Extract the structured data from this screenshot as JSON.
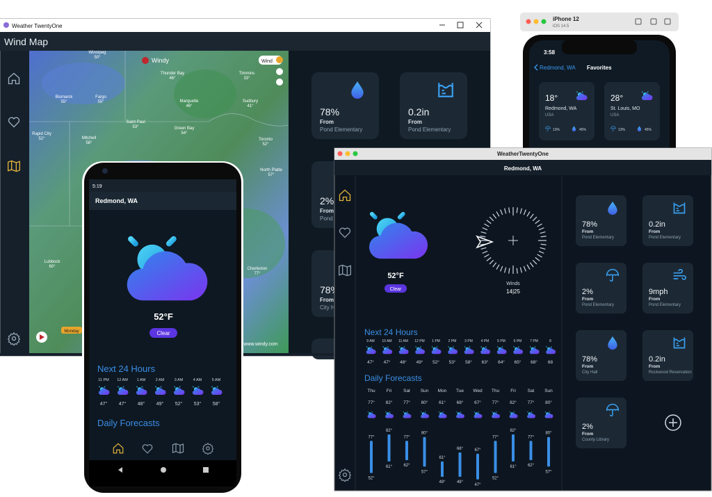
{
  "windows_app": {
    "title": "Weather TwentyOne",
    "header": "Wind Map",
    "map": {
      "brand": "Windy",
      "layer": "Wind",
      "labels": [
        {
          "name": "Winnipeg",
          "temp": "50°"
        },
        {
          "name": "Thunder Bay",
          "temp": "46°"
        },
        {
          "name": "Timmins",
          "temp": "33°"
        },
        {
          "name": "Bismarck",
          "temp": "55°"
        },
        {
          "name": "Fargo",
          "temp": "55°"
        },
        {
          "name": "Marquette",
          "temp": "46°"
        },
        {
          "name": "Sudbury",
          "temp": "41°"
        },
        {
          "name": "Saint Paul",
          "temp": "53°"
        },
        {
          "name": "Green Bay",
          "temp": "54°"
        },
        {
          "name": "Toronto",
          "temp": "52°"
        },
        {
          "name": "Rapid City",
          "temp": "52°"
        },
        {
          "name": "Mitchell",
          "temp": "58°"
        },
        {
          "name": "North Platte",
          "temp": "57°"
        },
        {
          "name": "Charleston",
          "temp": "77°"
        },
        {
          "name": "Lubbock",
          "temp": "60°"
        }
      ],
      "day": "Monday",
      "credit": "www.windy.com"
    },
    "tiles": [
      {
        "value": "78%",
        "from": "From",
        "place": "Pond Elementary"
      },
      {
        "value": "0.2in",
        "from": "From",
        "place": "Pond Elementary"
      },
      {
        "value": "2%",
        "from": "From",
        "place": "Pond Elementary"
      },
      {
        "value": "78%",
        "from": "From",
        "place": "City Hall"
      }
    ]
  },
  "iphone": {
    "device": "iPhone 12",
    "os": "iOS 14.5",
    "time": "3:58",
    "back": "Redmond, WA",
    "title": "Favorites",
    "cards": [
      {
        "temp": "18°",
        "city": "Redmond, WA",
        "country": "USA",
        "rain": "13%",
        "humidity": "45%"
      },
      {
        "temp": "28°",
        "city": "St. Louis, MO",
        "country": "USA",
        "rain": "13%",
        "humidity": "45%"
      }
    ]
  },
  "mac_app": {
    "title": "WeatherTwentyOne",
    "location": "Redmond, WA",
    "temperature": "52°F",
    "condition": "Clear",
    "winds_label": "Winds",
    "winds": "14|25",
    "next_hours_title": "Next 24 Hours",
    "hours": [
      "9 AM",
      "10 AM",
      "11 AM",
      "12 PM",
      "1 PM",
      "2 PM",
      "3 PM",
      "4 PM",
      "5 PM",
      "6 PM",
      "7 PM",
      "8"
    ],
    "hour_temps": [
      "47°",
      "47°",
      "48°",
      "49°",
      "52°",
      "53°",
      "58°",
      "63°",
      "64°",
      "65°",
      "68°",
      "68"
    ],
    "daily_title": "Daily Forecasts",
    "days": [
      "Thu",
      "Fri",
      "Sat",
      "Sun",
      "Mon",
      "Tue",
      "Wed",
      "Thu",
      "Fri",
      "Sat",
      "Sun"
    ],
    "highs": [
      77,
      82,
      77,
      80,
      61,
      68,
      67,
      77,
      82,
      77,
      80
    ],
    "high_labels": [
      "77°",
      "82°",
      "77°",
      "80°",
      "61°",
      "68°",
      "67°",
      "77°",
      "82°",
      "77°",
      "80°"
    ],
    "lows": [
      52,
      61,
      62,
      57,
      49,
      49,
      47,
      52,
      61,
      62,
      57
    ],
    "low_labels": [
      "52°",
      "61°",
      "62°",
      "57°",
      "49°",
      "49°",
      "47°",
      "52°",
      "61°",
      "62°",
      "57°"
    ],
    "tiles": [
      {
        "value": "78%",
        "from": "From",
        "place": "Pond Elementary"
      },
      {
        "value": "0.2in",
        "from": "From",
        "place": "Pond Elementary"
      },
      {
        "value": "2%",
        "from": "From",
        "place": "Pond Elementary"
      },
      {
        "value": "9mph",
        "from": "From",
        "place": "Pond Elementary"
      },
      {
        "value": "78%",
        "from": "From",
        "place": "City Hall"
      },
      {
        "value": "0.2in",
        "from": "From",
        "place": "Rockwood Reservation"
      },
      {
        "value": "2%",
        "from": "From",
        "place": "County Library"
      }
    ]
  },
  "android_app": {
    "time": "5:19",
    "location": "Redmond, WA",
    "temperature": "52°F",
    "condition": "Clear",
    "next_hours_title": "Next 24 Hours",
    "hours": [
      "11 PM",
      "12 AM",
      "1 AM",
      "2 AM",
      "3 AM",
      "4 AM",
      "5 AM"
    ],
    "hour_temps": [
      "47°",
      "47°",
      "48°",
      "49°",
      "52°",
      "53°",
      "58°"
    ],
    "daily_title": "Daily Forecasts"
  }
}
